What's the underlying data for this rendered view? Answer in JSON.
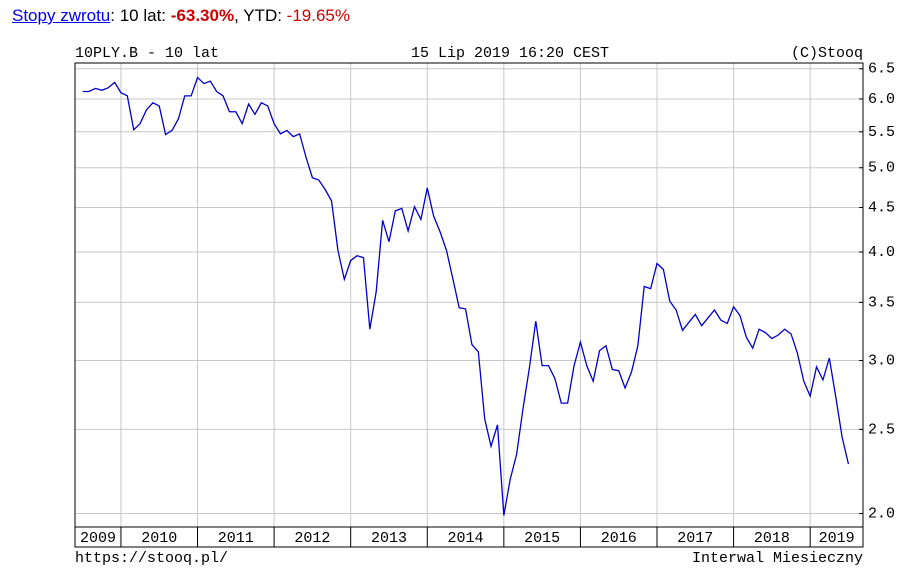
{
  "returns": {
    "link": "Stopy zwrotu",
    "period": ": 10 lat: ",
    "period_value": "-63.30%",
    "ytd": ", YTD: ",
    "ytd_value": "-19.65%"
  },
  "chart_data": {
    "type": "line",
    "title": "10PLY.B - 10 lat",
    "subtitle": "15 Lip 2019 16:20 CEST",
    "source": "(C)Stooq",
    "footer_left": "https://stooq.pl/",
    "footer_right": "Interwal Miesieczny",
    "log_scale": true,
    "grid": true,
    "xlim": [
      2009.4,
      2019.69
    ],
    "ylim": [
      1.93,
      6.6
    ],
    "xticks": [
      2009,
      2010,
      2011,
      2012,
      2013,
      2014,
      2015,
      2016,
      2017,
      2018,
      2019
    ],
    "yticks": [
      {
        "value": 2,
        "label": "2.0"
      },
      2.5,
      {
        "value": 3,
        "label": "3.0"
      },
      3.5,
      {
        "value": 4,
        "label": "4.0"
      },
      4.5,
      {
        "value": 5,
        "label": "5.0"
      },
      5.5,
      {
        "value": 6,
        "label": "6.0"
      },
      6.5
    ],
    "series": [
      {
        "name": "10PLY.B",
        "color": "#0000cc",
        "x": [
          2009.5,
          2009.583,
          2009.667,
          2009.75,
          2009.833,
          2009.917,
          2010,
          2010.083,
          2010.167,
          2010.25,
          2010.333,
          2010.417,
          2010.5,
          2010.583,
          2010.667,
          2010.75,
          2010.833,
          2010.917,
          2011,
          2011.083,
          2011.167,
          2011.25,
          2011.333,
          2011.417,
          2011.5,
          2011.583,
          2011.667,
          2011.75,
          2011.833,
          2011.917,
          2012,
          2012.083,
          2012.167,
          2012.25,
          2012.333,
          2012.417,
          2012.5,
          2012.583,
          2012.667,
          2012.75,
          2012.833,
          2012.917,
          2013,
          2013.083,
          2013.167,
          2013.25,
          2013.333,
          2013.417,
          2013.5,
          2013.583,
          2013.667,
          2013.75,
          2013.833,
          2013.917,
          2014,
          2014.083,
          2014.167,
          2014.25,
          2014.333,
          2014.417,
          2014.5,
          2014.583,
          2014.667,
          2014.75,
          2014.833,
          2014.917,
          2015,
          2015.083,
          2015.167,
          2015.25,
          2015.333,
          2015.417,
          2015.5,
          2015.583,
          2015.667,
          2015.75,
          2015.833,
          2015.917,
          2016,
          2016.083,
          2016.167,
          2016.25,
          2016.333,
          2016.417,
          2016.5,
          2016.583,
          2016.667,
          2016.75,
          2016.833,
          2016.917,
          2017,
          2017.083,
          2017.167,
          2017.25,
          2017.333,
          2017.417,
          2017.5,
          2017.583,
          2017.667,
          2017.75,
          2017.833,
          2017.917,
          2018,
          2018.083,
          2018.167,
          2018.25,
          2018.333,
          2018.417,
          2018.5,
          2018.583,
          2018.667,
          2018.75,
          2018.833,
          2018.917,
          2019,
          2019.083,
          2019.167,
          2019.25,
          2019.333,
          2019.417,
          2019.5
        ],
        "values": [
          6.12,
          6.12,
          6.17,
          6.14,
          6.18,
          6.27,
          6.1,
          6.05,
          5.53,
          5.62,
          5.83,
          5.94,
          5.89,
          5.46,
          5.52,
          5.69,
          6.05,
          6.05,
          6.35,
          6.25,
          6.29,
          6.12,
          6.05,
          5.8,
          5.8,
          5.62,
          5.92,
          5.76,
          5.94,
          5.89,
          5.62,
          5.47,
          5.52,
          5.43,
          5.47,
          5.14,
          4.87,
          4.84,
          4.72,
          4.58,
          4.02,
          3.72,
          3.91,
          3.96,
          3.94,
          3.26,
          3.6,
          4.35,
          4.11,
          4.46,
          4.49,
          4.23,
          4.51,
          4.36,
          4.74,
          4.4,
          4.22,
          4.02,
          3.73,
          3.45,
          3.44,
          3.13,
          3.07,
          2.57,
          2.39,
          2.53,
          1.99,
          2.19,
          2.34,
          2.64,
          2.94,
          3.33,
          2.96,
          2.96,
          2.86,
          2.68,
          2.68,
          2.96,
          3.15,
          2.96,
          2.84,
          3.08,
          3.12,
          2.93,
          2.92,
          2.79,
          2.91,
          3.12,
          3.65,
          3.63,
          3.88,
          3.82,
          3.51,
          3.43,
          3.25,
          3.32,
          3.39,
          3.29,
          3.36,
          3.43,
          3.34,
          3.31,
          3.46,
          3.38,
          3.19,
          3.1,
          3.26,
          3.23,
          3.18,
          3.21,
          3.26,
          3.22,
          3.06,
          2.84,
          2.73,
          2.95,
          2.85,
          3.02,
          2.73,
          2.45,
          2.28
        ]
      }
    ]
  }
}
